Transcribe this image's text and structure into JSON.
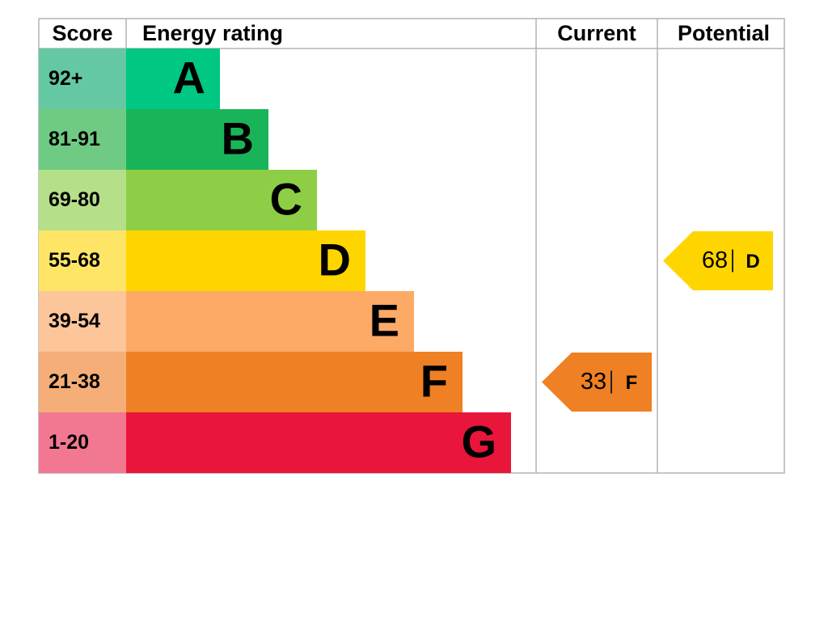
{
  "header": {
    "score": "Score",
    "energy_rating": "Energy rating",
    "current": "Current",
    "potential": "Potential"
  },
  "bands": [
    {
      "score": "92+",
      "letter": "A",
      "score_color": "#64c8a2",
      "color": "#00c781"
    },
    {
      "score": "81-91",
      "letter": "B",
      "score_color": "#6fcb84",
      "color": "#19b459"
    },
    {
      "score": "69-80",
      "letter": "C",
      "score_color": "#b5df88",
      "color": "#8dce46"
    },
    {
      "score": "55-68",
      "letter": "D",
      "score_color": "#ffe566",
      "color": "#ffd500"
    },
    {
      "score": "39-54",
      "letter": "E",
      "score_color": "#fdc59a",
      "color": "#fcaa65"
    },
    {
      "score": "21-38",
      "letter": "F",
      "score_color": "#f5ae78",
      "color": "#ef8023"
    },
    {
      "score": "1-20",
      "letter": "G",
      "score_color": "#f27891",
      "color": "#e9153b"
    }
  ],
  "current": {
    "value": 33,
    "letter": "F"
  },
  "potential": {
    "value": 68,
    "letter": "D"
  }
}
